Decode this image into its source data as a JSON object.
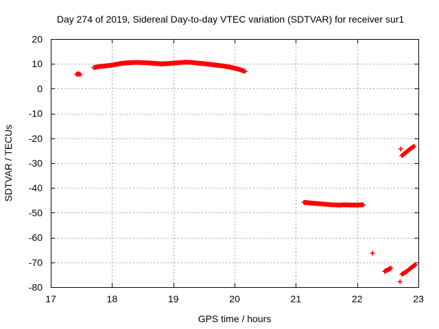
{
  "chart_data": {
    "type": "scatter",
    "title": "Day 274 of 2019, Sidereal Day-to-day VTEC variation (SDTVAR) for receiver sur1",
    "xlabel": "GPS time / hours",
    "ylabel": "SDTVAR / TECUs",
    "xlim": [
      17,
      23
    ],
    "ylim": [
      -80,
      20
    ],
    "x_ticks": [
      "17",
      "18",
      "19",
      "20",
      "21",
      "22",
      "23"
    ],
    "y_ticks": [
      "20",
      "10",
      "0",
      "-10",
      "-20",
      "-30",
      "-40",
      "-50",
      "-60",
      "-70",
      "-80"
    ],
    "grid": true,
    "marker_color": "#ff0000",
    "marker": "plus",
    "series": [
      {
        "name": "segment-1",
        "x": [
          17.42,
          17.45,
          17.48
        ],
        "y": [
          5.8,
          6.0,
          5.7
        ]
      },
      {
        "name": "segment-2",
        "x": [
          17.7,
          17.8,
          17.9,
          18.0,
          18.1,
          18.2,
          18.3,
          18.4,
          18.5,
          18.6,
          18.7,
          18.8,
          18.9,
          19.0,
          19.1,
          19.2,
          19.3,
          19.4,
          19.5,
          19.6,
          19.7,
          19.8,
          19.9,
          20.0,
          20.1,
          20.17
        ],
        "y": [
          8.5,
          9.0,
          9.2,
          9.5,
          10.0,
          10.3,
          10.5,
          10.6,
          10.5,
          10.4,
          10.2,
          10.0,
          10.1,
          10.3,
          10.5,
          10.7,
          10.6,
          10.3,
          10.1,
          9.8,
          9.5,
          9.2,
          8.8,
          8.3,
          7.6,
          7.0
        ]
      },
      {
        "name": "segment-3",
        "x": [
          21.13,
          21.2,
          21.3,
          21.4,
          21.5,
          21.6,
          21.7,
          21.8,
          21.9,
          22.0,
          22.1
        ],
        "y": [
          -45.8,
          -46.0,
          -46.2,
          -46.4,
          -46.6,
          -46.8,
          -46.9,
          -46.8,
          -46.9,
          -46.9,
          -46.8
        ]
      },
      {
        "name": "segment-4",
        "x": [
          22.25
        ],
        "y": [
          -66.3
        ]
      },
      {
        "name": "segment-5",
        "x": [
          22.45,
          22.5,
          22.55
        ],
        "y": [
          -73.6,
          -73.0,
          -72.3
        ]
      },
      {
        "name": "segment-6",
        "x": [
          22.7
        ],
        "y": [
          -77.8
        ]
      },
      {
        "name": "segment-7",
        "x": [
          22.73,
          22.8,
          22.85,
          22.9,
          22.95
        ],
        "y": [
          -74.8,
          -73.8,
          -72.8,
          -71.8,
          -71.0
        ]
      },
      {
        "name": "segment-8",
        "x": [
          22.71
        ],
        "y": [
          -24.3
        ]
      },
      {
        "name": "segment-9",
        "x": [
          22.73,
          22.78,
          22.83,
          22.88,
          22.93
        ],
        "y": [
          -27.0,
          -26.0,
          -25.0,
          -24.0,
          -23.2
        ]
      }
    ]
  }
}
